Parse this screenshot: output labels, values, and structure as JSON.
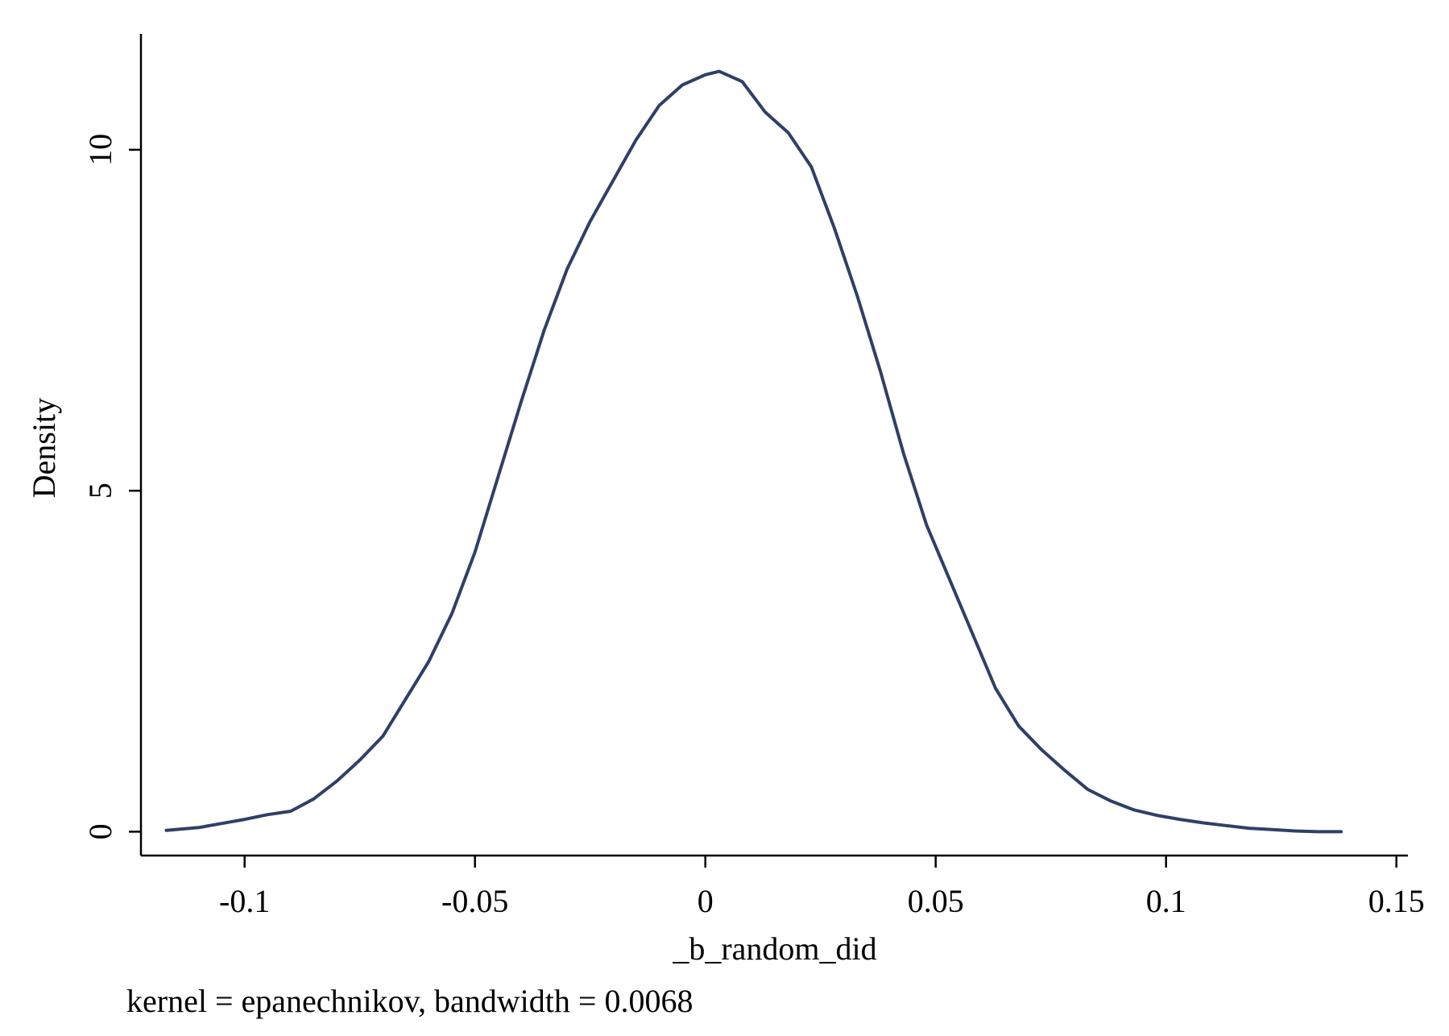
{
  "chart_data": {
    "type": "line",
    "title": "",
    "xlabel": "_b_random_did",
    "ylabel": "Density",
    "note": "kernel = epanechnikov, bandwidth = 0.0068",
    "xlim": [
      -0.1225,
      0.1525
    ],
    "ylim": [
      -0.35,
      11.7
    ],
    "xticks": [
      -0.1,
      -0.05,
      0,
      0.05,
      0.1,
      0.15
    ],
    "xtick_labels": [
      "-0.1",
      "-0.05",
      "0",
      "0.05",
      "0.1",
      "0.15"
    ],
    "yticks": [
      0,
      5,
      10
    ],
    "ytick_labels": [
      "0",
      "5",
      "10"
    ],
    "grid": false,
    "legend": false,
    "series": [
      {
        "color": "#2f4066",
        "x": [
          -0.117,
          -0.11,
          -0.105,
          -0.1,
          -0.095,
          -0.09,
          -0.085,
          -0.08,
          -0.075,
          -0.07,
          -0.065,
          -0.06,
          -0.055,
          -0.05,
          -0.045,
          -0.04,
          -0.035,
          -0.03,
          -0.025,
          -0.02,
          -0.015,
          -0.01,
          -0.005,
          0.0,
          0.003,
          0.008,
          0.013,
          0.018,
          0.023,
          0.028,
          0.033,
          0.038,
          0.043,
          0.048,
          0.053,
          0.058,
          0.063,
          0.068,
          0.073,
          0.078,
          0.083,
          0.088,
          0.093,
          0.098,
          0.103,
          0.108,
          0.113,
          0.118,
          0.123,
          0.128,
          0.133,
          0.138
        ],
        "y": [
          0.02,
          0.06,
          0.12,
          0.18,
          0.25,
          0.3,
          0.48,
          0.74,
          1.05,
          1.4,
          1.95,
          2.5,
          3.2,
          4.1,
          5.2,
          6.3,
          7.35,
          8.25,
          8.95,
          9.55,
          10.15,
          10.65,
          10.95,
          11.1,
          11.15,
          11.0,
          10.55,
          10.25,
          9.75,
          8.85,
          7.85,
          6.75,
          5.55,
          4.5,
          3.7,
          2.9,
          2.1,
          1.55,
          1.2,
          0.9,
          0.62,
          0.45,
          0.32,
          0.24,
          0.18,
          0.13,
          0.09,
          0.05,
          0.03,
          0.01,
          0.0,
          0.0
        ]
      }
    ]
  }
}
